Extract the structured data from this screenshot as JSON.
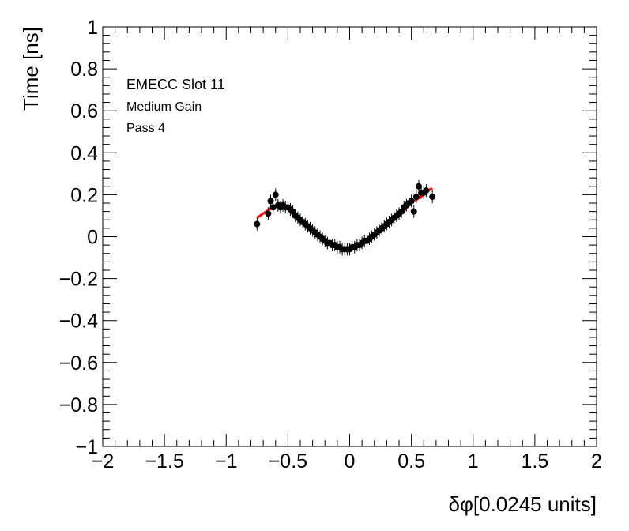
{
  "chart_data": {
    "type": "scatter",
    "xlabel": "δφ[0.0245 units]",
    "ylabel": "Time [ns]",
    "xlim": [
      -2,
      2
    ],
    "ylim": [
      -1,
      1
    ],
    "grid": false,
    "x_ticks": [
      -2,
      -1.5,
      -1,
      -0.5,
      0,
      0.5,
      1,
      1.5,
      2
    ],
    "x_tick_labels": [
      "−2",
      "−1.5",
      "−1",
      "−0.5",
      "0",
      "0.5",
      "1",
      "1.5",
      "2"
    ],
    "y_ticks": [
      1,
      0.8,
      0.6,
      0.4,
      0.2,
      0,
      -0.2,
      -0.4,
      -0.6,
      -0.8,
      -1
    ],
    "y_tick_labels": [
      "1",
      "0.8",
      "0.6",
      "0.4",
      "0.2",
      "0",
      "−0.2",
      "−0.4",
      "−0.6",
      "−0.8",
      "−1"
    ],
    "annotations": [
      "EMECC Slot 11",
      "Medium Gain",
      "Pass 4"
    ],
    "series": [
      {
        "marker": "circle",
        "color": "#000000",
        "error_bar": 0.03,
        "points": [
          [
            -0.75,
            0.06
          ],
          [
            -0.66,
            0.11
          ],
          [
            -0.64,
            0.17
          ],
          [
            -0.62,
            0.14
          ],
          [
            -0.6,
            0.2
          ],
          [
            -0.58,
            0.15
          ],
          [
            -0.56,
            0.14
          ],
          [
            -0.54,
            0.15
          ],
          [
            -0.52,
            0.14
          ],
          [
            -0.5,
            0.14
          ],
          [
            -0.48,
            0.13
          ],
          [
            -0.46,
            0.12
          ],
          [
            -0.44,
            0.1
          ],
          [
            -0.42,
            0.09
          ],
          [
            -0.4,
            0.08
          ],
          [
            -0.38,
            0.07
          ],
          [
            -0.36,
            0.06
          ],
          [
            -0.34,
            0.05
          ],
          [
            -0.32,
            0.04
          ],
          [
            -0.3,
            0.03
          ],
          [
            -0.28,
            0.02
          ],
          [
            -0.26,
            0.01
          ],
          [
            -0.24,
            0.0
          ],
          [
            -0.22,
            -0.01
          ],
          [
            -0.2,
            -0.02
          ],
          [
            -0.18,
            -0.03
          ],
          [
            -0.16,
            -0.03
          ],
          [
            -0.14,
            -0.04
          ],
          [
            -0.12,
            -0.04
          ],
          [
            -0.1,
            -0.05
          ],
          [
            -0.08,
            -0.05
          ],
          [
            -0.06,
            -0.06
          ],
          [
            -0.04,
            -0.06
          ],
          [
            -0.02,
            -0.06
          ],
          [
            0.0,
            -0.06
          ],
          [
            0.02,
            -0.05
          ],
          [
            0.04,
            -0.05
          ],
          [
            0.06,
            -0.04
          ],
          [
            0.08,
            -0.04
          ],
          [
            0.1,
            -0.03
          ],
          [
            0.12,
            -0.02
          ],
          [
            0.14,
            -0.02
          ],
          [
            0.16,
            -0.01
          ],
          [
            0.18,
            0.0
          ],
          [
            0.2,
            0.01
          ],
          [
            0.22,
            0.02
          ],
          [
            0.24,
            0.03
          ],
          [
            0.26,
            0.04
          ],
          [
            0.28,
            0.05
          ],
          [
            0.3,
            0.06
          ],
          [
            0.32,
            0.07
          ],
          [
            0.34,
            0.08
          ],
          [
            0.36,
            0.09
          ],
          [
            0.38,
            0.1
          ],
          [
            0.4,
            0.11
          ],
          [
            0.42,
            0.12
          ],
          [
            0.44,
            0.14
          ],
          [
            0.46,
            0.15
          ],
          [
            0.48,
            0.16
          ],
          [
            0.5,
            0.17
          ],
          [
            0.52,
            0.12
          ],
          [
            0.54,
            0.19
          ],
          [
            0.56,
            0.24
          ],
          [
            0.58,
            0.21
          ],
          [
            0.6,
            0.21
          ],
          [
            0.62,
            0.22
          ],
          [
            0.67,
            0.19
          ]
        ]
      },
      {
        "type": "line",
        "color": "#ff0000",
        "points": [
          [
            -0.75,
            0.09
          ],
          [
            -0.7,
            0.11
          ],
          [
            -0.65,
            0.13
          ],
          [
            -0.6,
            0.145
          ],
          [
            -0.55,
            0.14
          ],
          [
            -0.5,
            0.13
          ],
          [
            -0.45,
            0.1
          ],
          [
            -0.4,
            0.07
          ],
          [
            -0.35,
            0.045
          ],
          [
            -0.3,
            0.025
          ],
          [
            -0.25,
            0.005
          ],
          [
            -0.2,
            -0.015
          ],
          [
            -0.15,
            -0.03
          ],
          [
            -0.1,
            -0.045
          ],
          [
            -0.05,
            -0.055
          ],
          [
            0.0,
            -0.06
          ],
          [
            0.05,
            -0.055
          ],
          [
            0.1,
            -0.04
          ],
          [
            0.15,
            -0.02
          ],
          [
            0.2,
            0.0
          ],
          [
            0.25,
            0.025
          ],
          [
            0.3,
            0.05
          ],
          [
            0.35,
            0.075
          ],
          [
            0.4,
            0.1
          ],
          [
            0.45,
            0.13
          ],
          [
            0.5,
            0.16
          ],
          [
            0.55,
            0.18
          ],
          [
            0.6,
            0.2
          ],
          [
            0.65,
            0.225
          ],
          [
            0.67,
            0.23
          ]
        ]
      }
    ]
  }
}
